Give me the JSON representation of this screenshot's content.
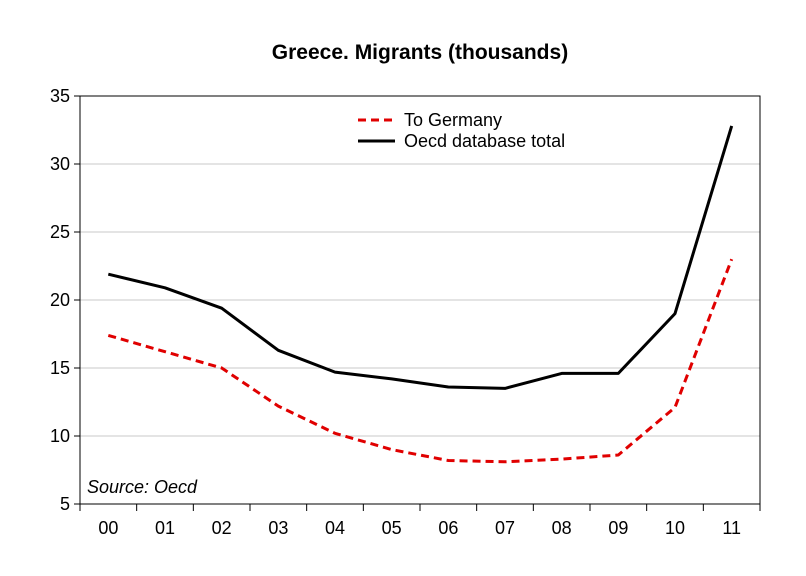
{
  "chart_data": {
    "type": "line",
    "title": "Greece. Migrants (thousands)",
    "xlabel": "",
    "ylabel": "",
    "categories": [
      "00",
      "01",
      "02",
      "03",
      "04",
      "05",
      "06",
      "07",
      "08",
      "09",
      "10",
      "11"
    ],
    "ylim": [
      5,
      35
    ],
    "yticks": [
      "5",
      "10",
      "15",
      "20",
      "25",
      "30",
      "35"
    ],
    "grid": true,
    "legend_position": "top-center",
    "series": [
      {
        "name": "To Germany",
        "color": "#e00000",
        "style": "dashed",
        "values": [
          17.4,
          16.2,
          15.0,
          12.2,
          10.2,
          9.0,
          8.2,
          8.1,
          8.3,
          8.6,
          12.1,
          23.0
        ]
      },
      {
        "name": "Oecd database total",
        "color": "#000000",
        "style": "solid",
        "values": [
          21.9,
          20.9,
          19.4,
          16.3,
          14.7,
          14.2,
          13.6,
          13.5,
          14.6,
          14.6,
          19.0,
          32.8
        ]
      }
    ],
    "annotation": "Source: Oecd"
  }
}
